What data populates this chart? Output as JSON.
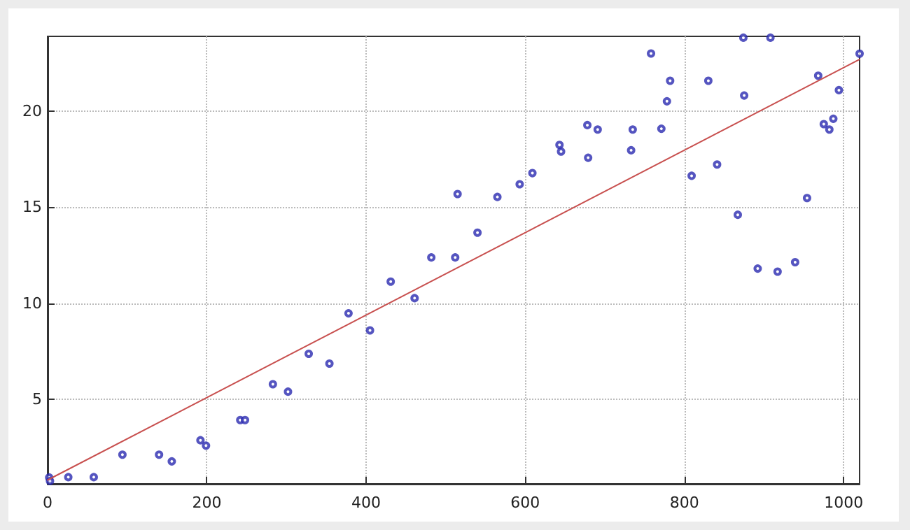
{
  "chart_data": {
    "type": "scatter",
    "xlim": [
      0,
      1020
    ],
    "ylim": [
      0.6,
      23.9
    ],
    "xticks": [
      0,
      200,
      400,
      600,
      800,
      1000
    ],
    "yticks": [
      5,
      10,
      15,
      20
    ],
    "grid": true,
    "series": [
      {
        "color": "#2b2bb0",
        "marker": "circle",
        "x": [
          2,
          3,
          26,
          34,
          53,
          58,
          81,
          94,
          117,
          140,
          156,
          192,
          199,
          242,
          248,
          283,
          302,
          328,
          354,
          378,
          405,
          431,
          461,
          482,
          512,
          515,
          540,
          565,
          593,
          609,
          643,
          645,
          678,
          679,
          691,
          733,
          735,
          758,
          771,
          778,
          782,
          809,
          830,
          841,
          867,
          874,
          875,
          892,
          908,
          917,
          939,
          954,
          968,
          975,
          982,
          987,
          994,
          1020
        ],
        "values": [
          0.93,
          0.75,
          0.95,
          null,
          null,
          0.95,
          null,
          2.12,
          null,
          2.12,
          1.77,
          2.87,
          2.59,
          3.92,
          3.92,
          5.79,
          5.4,
          7.37,
          6.86,
          9.48,
          8.59,
          11.13,
          10.27,
          12.39,
          12.39,
          15.69,
          13.68,
          15.54,
          16.2,
          16.78,
          18.25,
          17.9,
          19.28,
          17.58,
          19.05,
          17.97,
          19.05,
          23.01,
          19.09,
          20.52,
          21.59,
          16.64,
          21.59,
          17.23,
          14.61,
          23.83,
          20.82,
          11.81,
          23.83,
          11.65,
          12.14,
          15.48,
          21.85,
          19.33,
          19.05,
          19.61,
          21.1,
          23.0
        ]
      },
      {
        "type": "line",
        "color": "#c8504f",
        "marker": "none",
        "line_style": "solid",
        "x": [
          0,
          1020
        ],
        "values": [
          0.8,
          22.7
        ]
      }
    ]
  }
}
